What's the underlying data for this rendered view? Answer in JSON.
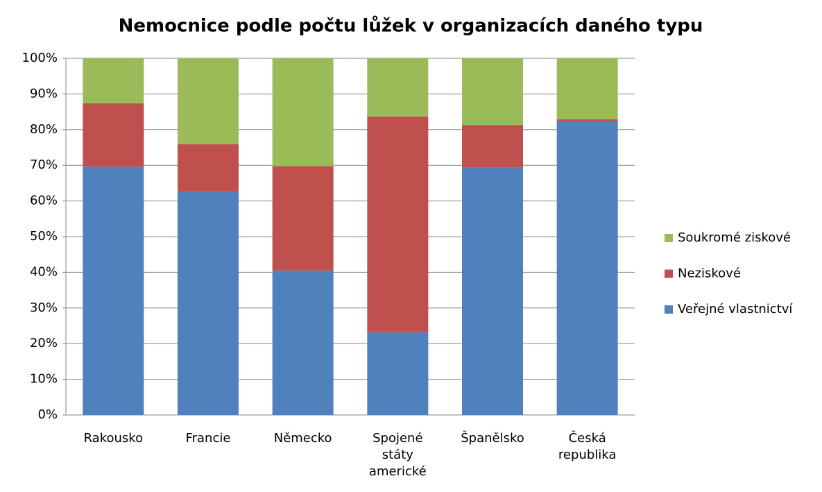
{
  "chart_data": {
    "type": "stacked_bar_percent",
    "title": "Nemocnice podle počtu lůžek v organizacích daného typu",
    "categories": [
      "Rakousko",
      "Francie",
      "Německo",
      "Spojené státy americké",
      "Španělsko",
      "Česká republika"
    ],
    "series": [
      {
        "name": "Veřejné vlastnictví",
        "color": "#4f81bd",
        "values": [
          69.6,
          62.5,
          40.5,
          23.2,
          69.3,
          82.3
        ]
      },
      {
        "name": "Neziskové",
        "color": "#c0504d",
        "values": [
          17.8,
          13.4,
          29.3,
          60.5,
          12.0,
          0.6
        ]
      },
      {
        "name": "Soukromé ziskové",
        "color": "#9bbb59",
        "values": [
          12.6,
          24.1,
          30.2,
          16.3,
          18.7,
          17.1
        ]
      }
    ],
    "ylim": [
      0,
      100
    ],
    "yticks": [
      {
        "value": 0,
        "label": "0%"
      },
      {
        "value": 10,
        "label": "10%"
      },
      {
        "value": 20,
        "label": "20%"
      },
      {
        "value": 30,
        "label": "30%"
      },
      {
        "value": 40,
        "label": "40%"
      },
      {
        "value": 50,
        "label": "50%"
      },
      {
        "value": 60,
        "label": "60%"
      },
      {
        "value": 70,
        "label": "70%"
      },
      {
        "value": 80,
        "label": "80%"
      },
      {
        "value": 90,
        "label": "90%"
      },
      {
        "value": 100,
        "label": "100%"
      }
    ],
    "grid": true,
    "legend": "right"
  }
}
